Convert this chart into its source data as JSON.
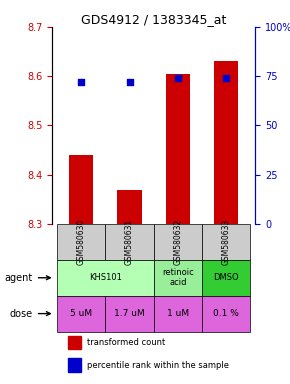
{
  "title": "GDS4912 / 1383345_at",
  "samples": [
    "GSM580630",
    "GSM580631",
    "GSM580632",
    "GSM580633"
  ],
  "bar_values": [
    8.44,
    8.37,
    8.605,
    8.63
  ],
  "bar_bottom": 8.3,
  "percentile_values": [
    72,
    72,
    74,
    74
  ],
  "ylim_left": [
    8.3,
    8.7
  ],
  "ylim_right": [
    0,
    100
  ],
  "yticks_left": [
    8.3,
    8.4,
    8.5,
    8.6,
    8.7
  ],
  "yticks_right": [
    0,
    25,
    50,
    75,
    100
  ],
  "ytick_labels_right": [
    "0",
    "25",
    "50",
    "75",
    "100%"
  ],
  "bar_color": "#cc0000",
  "marker_color": "#0000cc",
  "agent_labels": [
    "KHS101",
    "KHS101",
    "retinoic\nacid",
    "DMSO"
  ],
  "agent_spans": [
    [
      0,
      1
    ],
    [
      2
    ],
    [
      3
    ]
  ],
  "agent_texts": [
    "KHS101",
    "retinoic\nacid",
    "DMSO"
  ],
  "agent_colors": [
    "#b3ffb3",
    "#99ee99",
    "#33dd33"
  ],
  "dose_labels": [
    "5 uM",
    "1.7 uM",
    "1 uM",
    "0.1 %"
  ],
  "dose_color": "#dd66dd",
  "sample_bg_color": "#cccccc",
  "grid_color": "#000000",
  "left_axis_color": "#cc0000",
  "right_axis_color": "#0000cc"
}
